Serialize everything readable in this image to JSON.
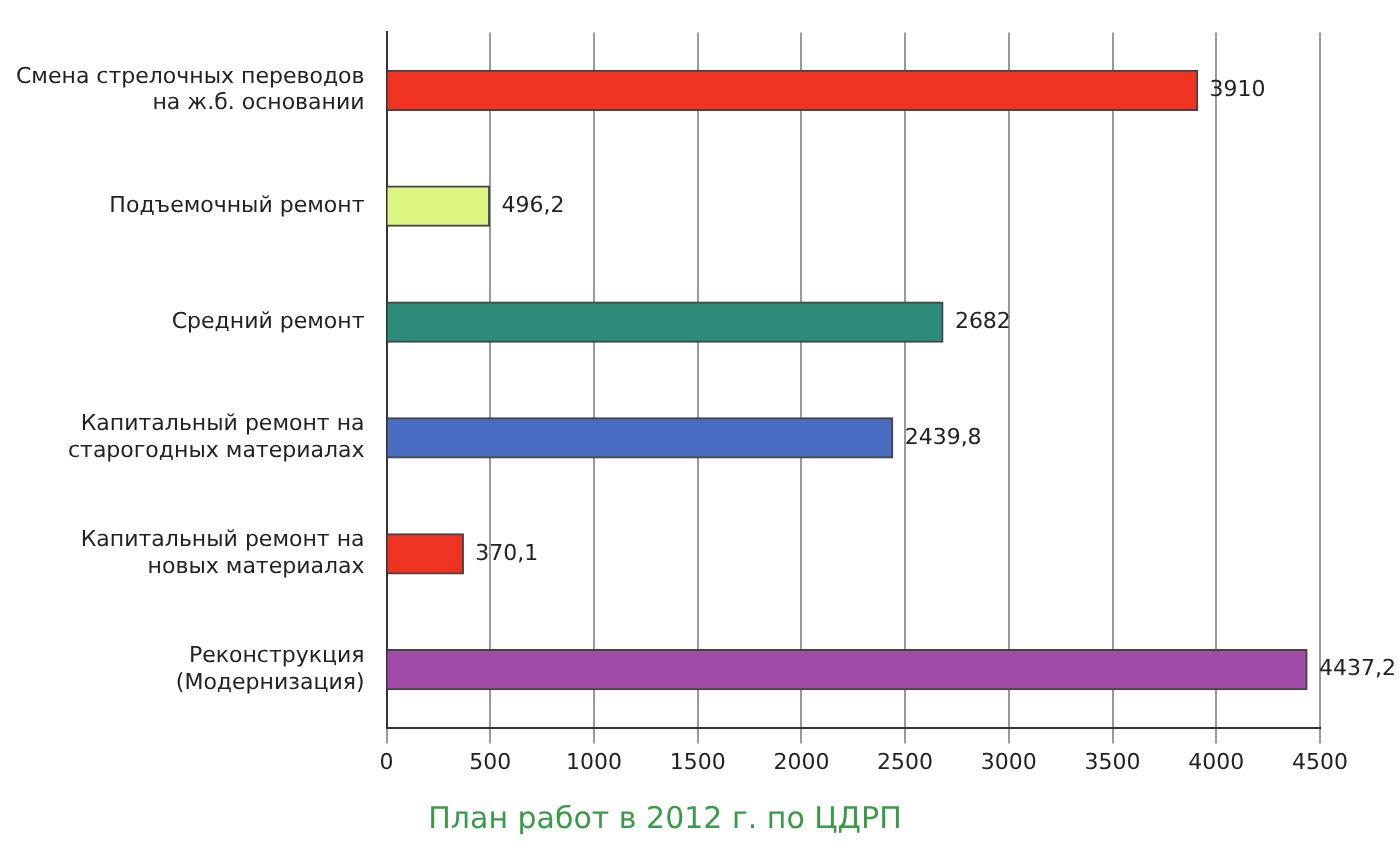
{
  "chart_data": {
    "type": "bar",
    "orientation": "horizontal",
    "title": "План работ в 2012 г. по ЦДРП",
    "categories": [
      "Смена стрелочных переводов на ж.б. основании",
      "Подъемочный ремонт",
      "Средний ремонт",
      "Капитальный ремонт на старогодных материалах",
      "Капитальный ремонт на новых материалах",
      "Реконструкция (Модернизация)"
    ],
    "values": [
      3910,
      496.2,
      2682,
      2439.8,
      370.1,
      4437.2
    ],
    "value_labels": [
      "3910",
      "496,2",
      "2682",
      "2439,8",
      "370,1",
      "4437,2"
    ],
    "colors": [
      "#ee3322",
      "#ddf580",
      "#2e8b7a",
      "#4a6cc0",
      "#ee3322",
      "#a24aa8"
    ],
    "xlim": [
      0,
      4500
    ],
    "xticks": [
      0,
      500,
      1000,
      1500,
      2000,
      2500,
      3000,
      3500,
      4000,
      4500
    ],
    "grid": "x",
    "legend": false
  }
}
